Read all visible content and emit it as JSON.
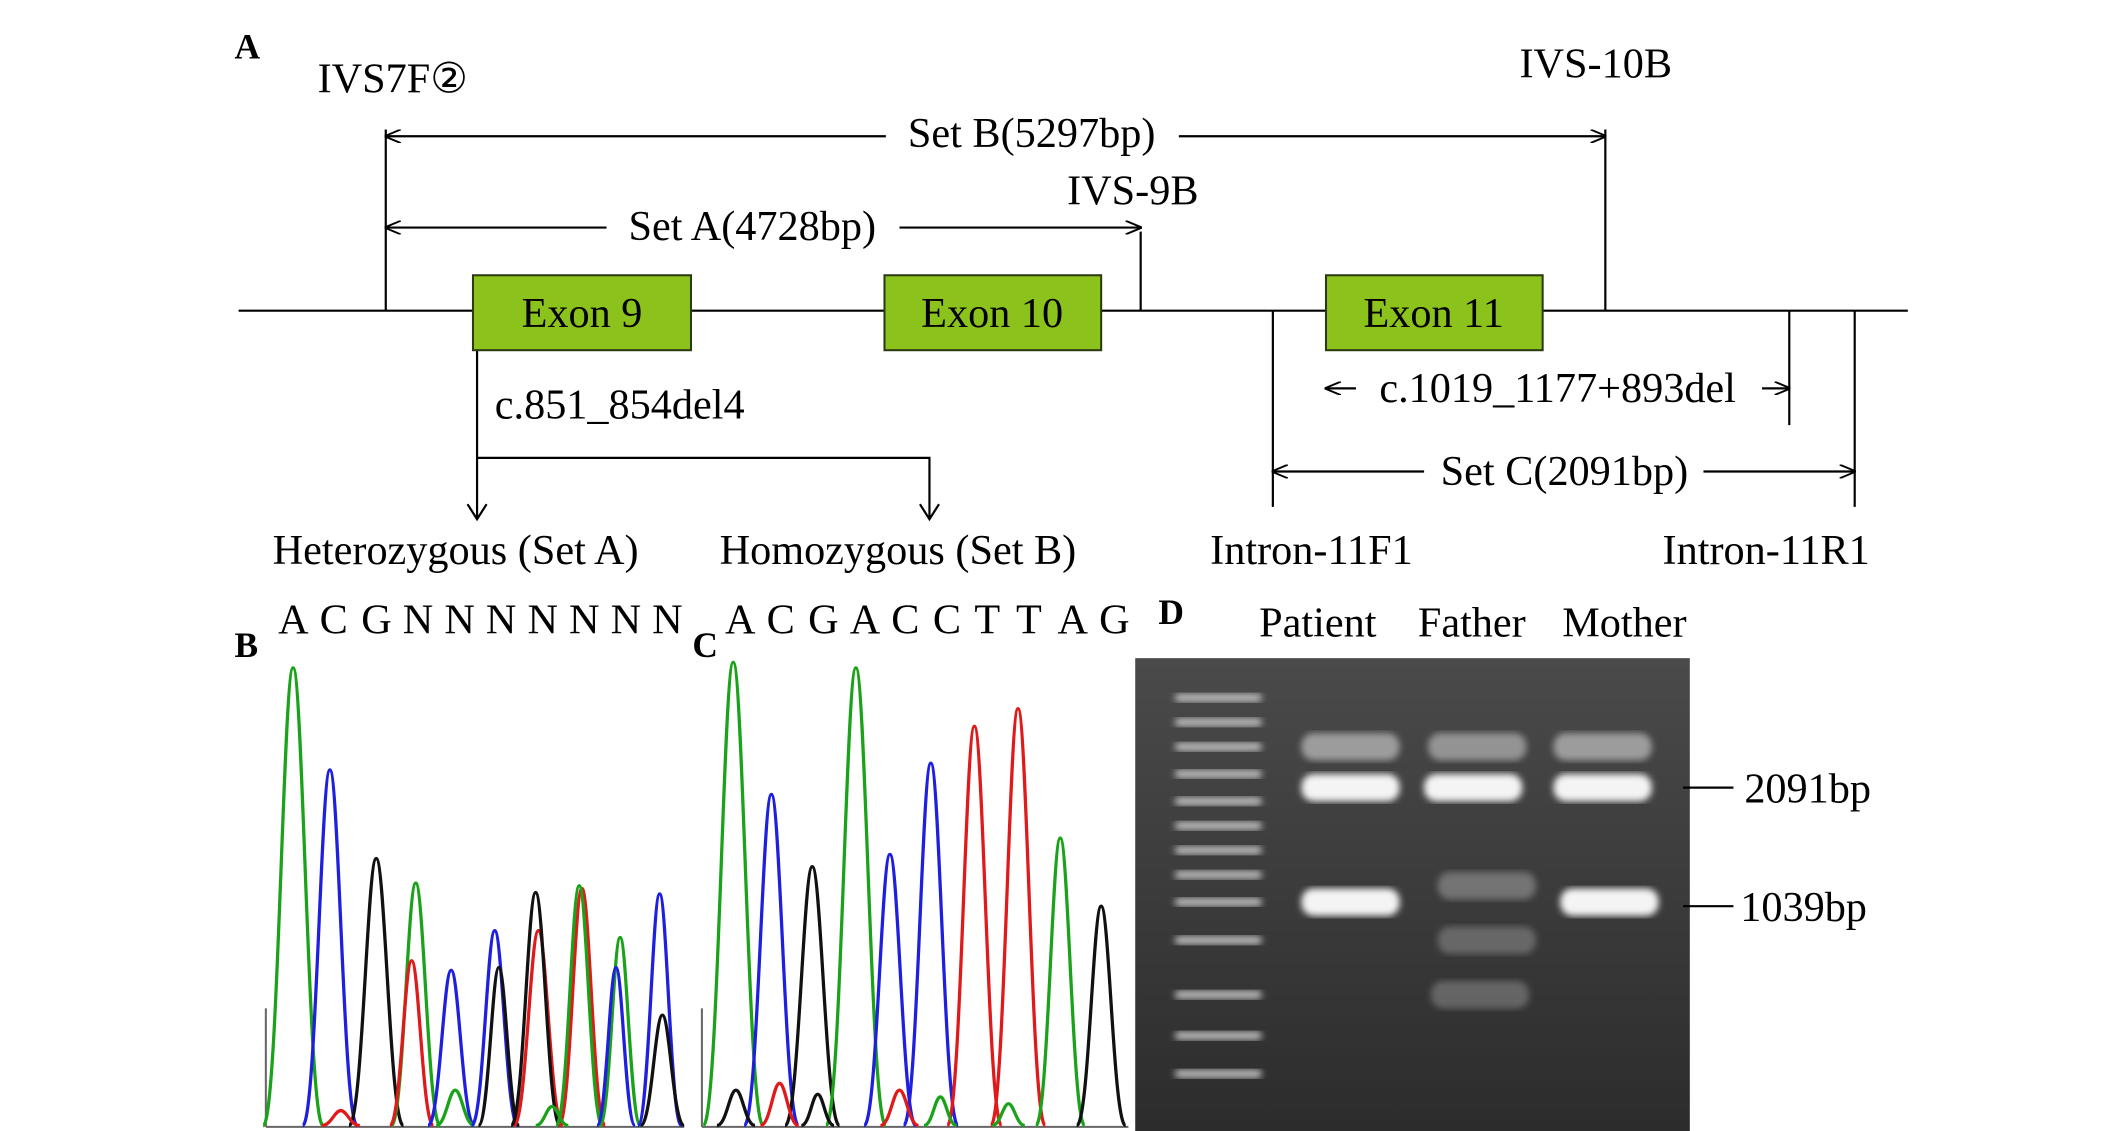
{
  "panels": {
    "a": "A",
    "b": "B",
    "c": "C",
    "d": "D"
  },
  "diagram": {
    "primers": [
      "IVS7F②",
      "IVS-10B",
      "IVS-9B",
      "Intron-11F1",
      "Intron-11R1"
    ],
    "sets": [
      "Set B(5297bp)",
      "Set A(4728bp)",
      "Set C(2091bp)"
    ],
    "exons": [
      "Exon 9",
      "Exon 10",
      "Exon 11"
    ],
    "mutations": [
      "c.851_854del4",
      "c.1019_1177+893del"
    ],
    "genotypes": [
      "Heterozygous (Set A)",
      "Homozygous (Set B)"
    ]
  },
  "sequencing": {
    "heterozygous": [
      "A",
      "C",
      "G",
      "N",
      "N",
      "N",
      "N",
      "N",
      "N",
      "N"
    ],
    "homozygous": [
      "A",
      "C",
      "G",
      "A",
      "C",
      "C",
      "T",
      "T",
      "A",
      "G"
    ]
  },
  "gel": {
    "lanes": [
      "Patient",
      "Father",
      "Mother"
    ],
    "bands": [
      "2091bp",
      "1039bp"
    ]
  }
}
